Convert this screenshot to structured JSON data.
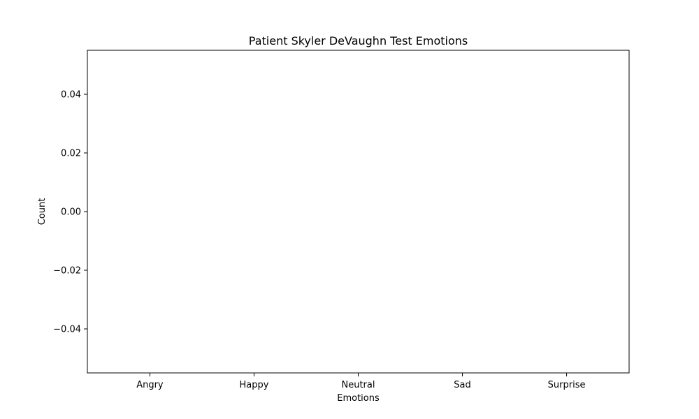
{
  "chart_data": {
    "type": "bar",
    "title": "Patient Skyler DeVaughn Test Emotions",
    "xlabel": "Emotions",
    "ylabel": "Count",
    "categories": [
      "Angry",
      "Happy",
      "Neutral",
      "Sad",
      "Surprise"
    ],
    "values": [
      0,
      0,
      0,
      0,
      0
    ],
    "ylim": [
      -0.055,
      0.055
    ],
    "yticks": [
      -0.04,
      -0.02,
      0.0,
      0.02,
      0.04
    ],
    "ytick_labels": [
      "−0.04",
      "−0.02",
      "0.00",
      "0.02",
      "0.04"
    ],
    "grid": false,
    "legend": "none",
    "bar_color": "#1f77b4"
  }
}
